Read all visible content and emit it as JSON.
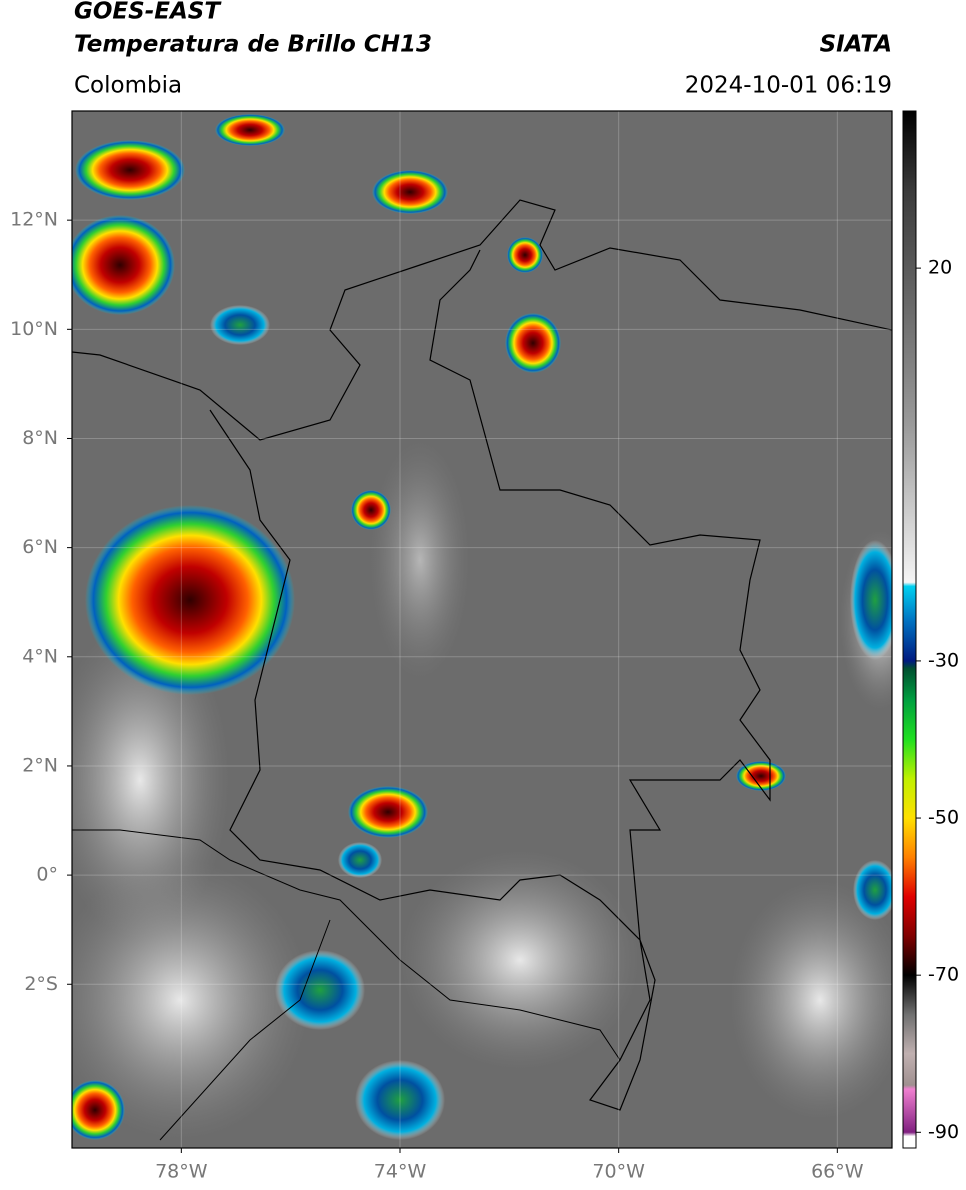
{
  "header": {
    "title": "GOES-EAST",
    "subtitle": "Temperatura de Brillo CH13",
    "source": "SIATA",
    "region": "Colombia",
    "datetime": "2024-10-01 06:19"
  },
  "map": {
    "xlim": [
      -80,
      -65
    ],
    "ylim": [
      -5,
      14
    ],
    "grid": true,
    "xticks": [
      {
        "value": -78,
        "label": "78°W"
      },
      {
        "value": -74,
        "label": "74°W"
      },
      {
        "value": -70,
        "label": "70°W"
      },
      {
        "value": -66,
        "label": "66°W"
      }
    ],
    "yticks": [
      {
        "value": 12,
        "label": "12°N"
      },
      {
        "value": 10,
        "label": "10°N"
      },
      {
        "value": 8,
        "label": "8°N"
      },
      {
        "value": 6,
        "label": "6°N"
      },
      {
        "value": 4,
        "label": "4°N"
      },
      {
        "value": 2,
        "label": "2°N"
      },
      {
        "value": 0,
        "label": "0°"
      },
      {
        "value": -2,
        "label": "2°S"
      }
    ]
  },
  "colorbar": {
    "clim": [
      -92,
      40
    ],
    "ticks": [
      20,
      -30,
      -50,
      -70,
      -90
    ],
    "colormap": [
      {
        "value": 40,
        "color": "#000000"
      },
      {
        "value": 30,
        "color": "#3a3a3a"
      },
      {
        "value": 20,
        "color": "#5a5a5a"
      },
      {
        "value": 0,
        "color": "#9a9a9a"
      },
      {
        "value": -20,
        "color": "#f5f5f5"
      },
      {
        "value": -20.5,
        "color": "#00d0f0"
      },
      {
        "value": -25,
        "color": "#0070c0"
      },
      {
        "value": -30,
        "color": "#001a80"
      },
      {
        "value": -31,
        "color": "#005030"
      },
      {
        "value": -35,
        "color": "#00a040"
      },
      {
        "value": -40,
        "color": "#20e020"
      },
      {
        "value": -45,
        "color": "#c0f000"
      },
      {
        "value": -50,
        "color": "#ffe000"
      },
      {
        "value": -55,
        "color": "#ff8000"
      },
      {
        "value": -60,
        "color": "#e00000"
      },
      {
        "value": -65,
        "color": "#800000"
      },
      {
        "value": -70,
        "color": "#000000"
      },
      {
        "value": -75,
        "color": "#707070"
      },
      {
        "value": -80,
        "color": "#c0b0b0"
      },
      {
        "value": -84,
        "color": "#a09090"
      },
      {
        "value": -84.5,
        "color": "#f080d0"
      },
      {
        "value": -90,
        "color": "#802080"
      },
      {
        "value": -90.5,
        "color": "#ffffff"
      },
      {
        "value": -92,
        "color": "#ffffff"
      }
    ]
  }
}
